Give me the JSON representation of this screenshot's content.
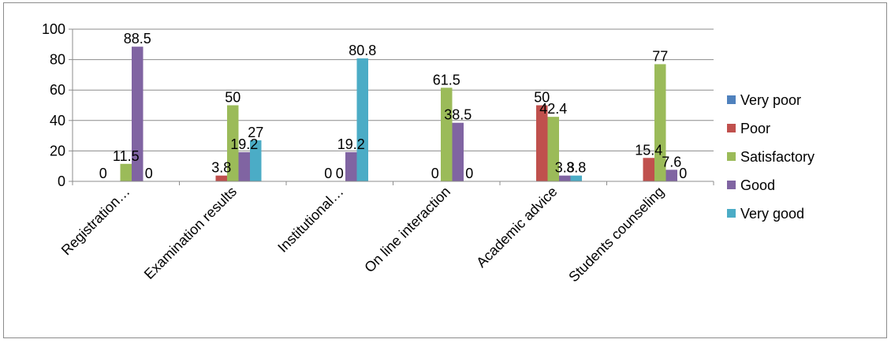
{
  "chart_data": {
    "type": "bar",
    "title": "",
    "xlabel": "",
    "ylabel": "",
    "ylim": [
      0,
      100
    ],
    "y_ticks": [
      "0",
      "20",
      "40",
      "60",
      "80",
      "100"
    ],
    "grid": true,
    "legend_position": "right",
    "categories": [
      "Registration…",
      "Examination results",
      "Institutional…",
      "On line interaction",
      "Academic advice",
      "Students counseling"
    ],
    "series": [
      {
        "name": "Very poor",
        "color": "#4f81bd",
        "values": [
          0,
          0,
          0,
          0,
          0,
          0
        ]
      },
      {
        "name": "Poor",
        "color": "#c0504d",
        "values": [
          0,
          3.8,
          0,
          0,
          50,
          15.4
        ]
      },
      {
        "name": "Satisfactory",
        "color": "#9bbb59",
        "values": [
          11.5,
          50,
          0,
          61.5,
          42.4,
          77
        ]
      },
      {
        "name": "Good",
        "color": "#8064a2",
        "values": [
          88.5,
          19.2,
          19.2,
          38.5,
          3.8,
          7.6
        ]
      },
      {
        "name": "Very good",
        "color": "#4bacc6",
        "values": [
          0,
          27,
          80.8,
          0,
          3.8,
          0
        ]
      }
    ],
    "data_labels": [
      [
        {
          "text": "0",
          "series": 0
        },
        {
          "text": "11.5",
          "series": 2
        },
        {
          "text": "88.5",
          "series": 3
        },
        {
          "text": "0",
          "series": 4
        }
      ],
      [
        {
          "text": "3.8",
          "series": 1
        },
        {
          "text": "50",
          "series": 2
        },
        {
          "text": "19.2",
          "series": 3
        },
        {
          "text": "27",
          "series": 4
        }
      ],
      [
        {
          "text": "0",
          "series": 1
        },
        {
          "text": "0",
          "series": 2
        },
        {
          "text": "19.2",
          "series": 3
        },
        {
          "text": "80.8",
          "series": 4
        }
      ],
      [
        {
          "text": "0",
          "series": 1
        },
        {
          "text": "61.5",
          "series": 2
        },
        {
          "text": "38.5",
          "series": 3
        },
        {
          "text": "0",
          "series": 4
        }
      ],
      [
        {
          "text": "50",
          "series": 1
        },
        {
          "text": "42.4",
          "series": 2
        },
        {
          "text": "3.8",
          "series": 3
        },
        {
          "text": "3.8",
          "series": 4
        }
      ],
      [
        {
          "text": "15.4",
          "series": 1
        },
        {
          "text": "77",
          "series": 2
        },
        {
          "text": "7.6",
          "series": 3
        },
        {
          "text": "0",
          "series": 4
        }
      ]
    ]
  }
}
